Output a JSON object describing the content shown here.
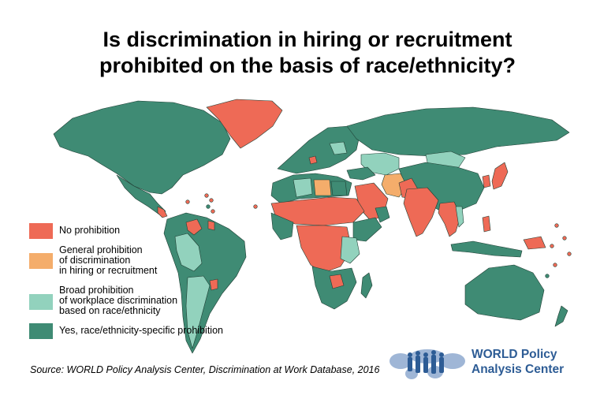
{
  "title": {
    "line1": "Is discrimination in hiring or recruitment",
    "line2": "prohibited on the basis of race/ethnicity?"
  },
  "colors": {
    "no_prohibition": "#ee6a56",
    "general": "#f4ad6b",
    "broad": "#92d2bd",
    "specific": "#3f8b74",
    "border": "#1f3f34",
    "logo_blue": "#2d5c95"
  },
  "legend": [
    {
      "key": "no_prohibition",
      "lines": [
        "No prohibition"
      ]
    },
    {
      "key": "general",
      "lines": [
        "General prohibition",
        "of discrimination",
        "in hiring or recruitment"
      ]
    },
    {
      "key": "broad",
      "lines": [
        "Broad prohibition",
        "of workplace discrimination",
        "based on race/ethnicity"
      ]
    },
    {
      "key": "specific",
      "lines": [
        "Yes, race/ethnicity-specific prohibition"
      ]
    }
  ],
  "source": "Source: WORLD Policy Analysis Center, Discrimination at Work Database, 2016",
  "org": {
    "line1": "WORLD Policy",
    "line2": "Analysis Center",
    "logo_icon": "world-map-people-icon"
  }
}
